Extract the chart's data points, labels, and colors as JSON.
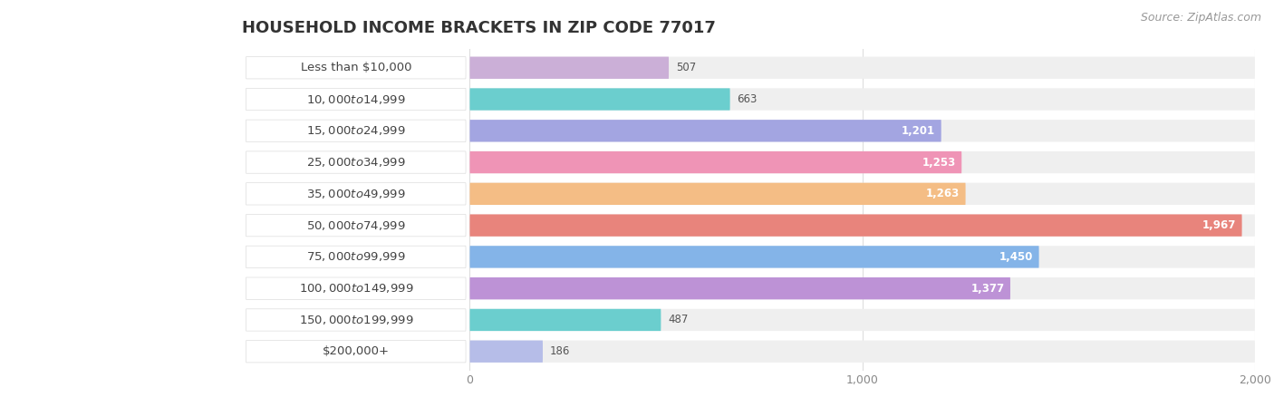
{
  "title": "HOUSEHOLD INCOME BRACKETS IN ZIP CODE 77017",
  "source": "Source: ZipAtlas.com",
  "categories": [
    "Less than $10,000",
    "$10,000 to $14,999",
    "$15,000 to $24,999",
    "$25,000 to $34,999",
    "$35,000 to $49,999",
    "$50,000 to $74,999",
    "$75,000 to $99,999",
    "$100,000 to $149,999",
    "$150,000 to $199,999",
    "$200,000+"
  ],
  "values": [
    507,
    663,
    1201,
    1253,
    1263,
    1967,
    1450,
    1377,
    487,
    186
  ],
  "bar_colors": [
    "#c8a8d5",
    "#5dcbcb",
    "#9b9de0",
    "#f08ab0",
    "#f5b87a",
    "#e87870",
    "#78aee8",
    "#b888d4",
    "#5dcbcb",
    "#b0b8e8"
  ],
  "bar_bg_color": "#efefef",
  "label_bg_color": "#ffffff",
  "background_color": "#ffffff",
  "grid_color": "#dddddd",
  "xlim": [
    0,
    2000
  ],
  "xticks": [
    0,
    1000,
    2000
  ],
  "title_fontsize": 13,
  "label_fontsize": 9.5,
  "value_fontsize": 8.5,
  "source_fontsize": 9,
  "value_threshold": 700
}
